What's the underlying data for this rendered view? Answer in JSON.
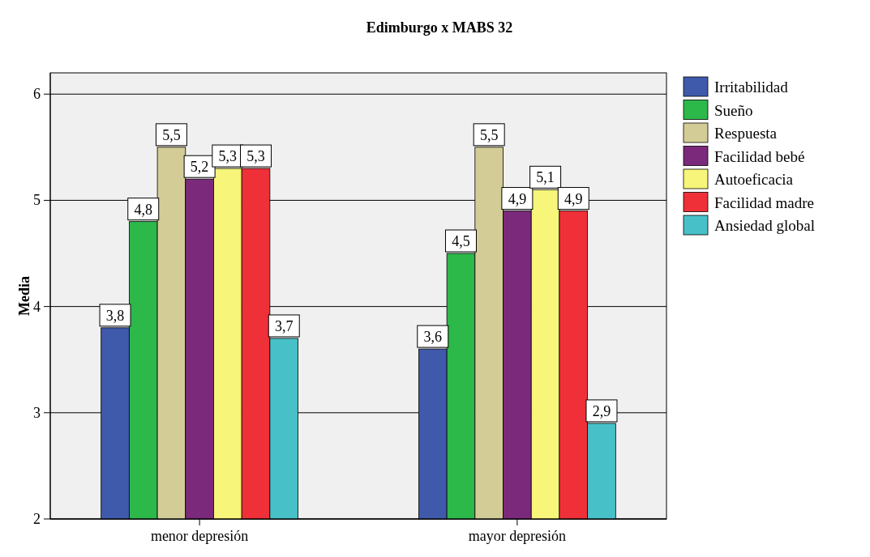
{
  "chart_data": {
    "type": "bar",
    "title": "Edimburgo x MABS 32",
    "ylabel": "Media",
    "categories": [
      "menor depresión",
      "mayor depresión"
    ],
    "series": [
      {
        "name": "Irritabilidad",
        "color": "#3f5aab",
        "values": [
          3.8,
          3.6
        ],
        "value_labels": [
          "3,8",
          "3,6"
        ]
      },
      {
        "name": "Sueño",
        "color": "#2db84a",
        "values": [
          4.8,
          4.5
        ],
        "value_labels": [
          "4,8",
          "4,5"
        ]
      },
      {
        "name": "Respuesta",
        "color": "#d4cc96",
        "values": [
          5.5,
          5.5
        ],
        "value_labels": [
          "5,5",
          "5,5"
        ]
      },
      {
        "name": "Facilidad bebé",
        "color": "#7b2a7b",
        "values": [
          5.2,
          4.9
        ],
        "value_labels": [
          "5,2",
          "4,9"
        ]
      },
      {
        "name": "Autoeficacia",
        "color": "#f7f57a",
        "values": [
          5.3,
          5.1
        ],
        "value_labels": [
          "5,3",
          "5,1"
        ]
      },
      {
        "name": "Facilidad madre",
        "color": "#ef3038",
        "values": [
          5.3,
          4.9
        ],
        "value_labels": [
          "5,3",
          "4,9"
        ]
      },
      {
        "name": "Ansiedad global",
        "color": "#48c0c8",
        "values": [
          3.7,
          2.9
        ],
        "value_labels": [
          "3,7",
          "2,9"
        ]
      }
    ],
    "ylim": [
      2,
      6.2
    ],
    "yticks": [
      2,
      3,
      4,
      5,
      6
    ],
    "grid": "y",
    "legend": "right"
  }
}
